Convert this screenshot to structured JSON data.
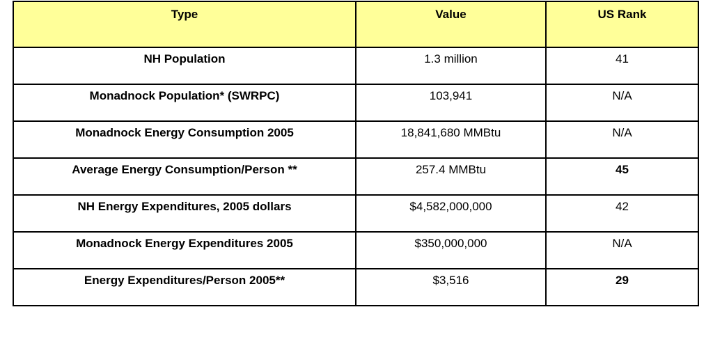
{
  "table": {
    "header_bg": "#FFFF99",
    "columns": [
      "Type",
      "Value",
      "US Rank"
    ],
    "rows": [
      {
        "type": "NH Population",
        "value": "1.3 million",
        "rank": "41",
        "rank_bold": false
      },
      {
        "type": "Monadnock Population* (SWRPC)",
        "value": "103,941",
        "rank": "N/A",
        "rank_bold": false
      },
      {
        "type": "Monadnock Energy Consumption 2005",
        "value": "18,841,680 MMBtu",
        "rank": "N/A",
        "rank_bold": false
      },
      {
        "type": "Average Energy Consumption/Person **",
        "value": "257.4 MMBtu",
        "rank": "45",
        "rank_bold": true
      },
      {
        "type": "NH Energy Expenditures, 2005 dollars",
        "value": "$4,582,000,000",
        "rank": "42",
        "rank_bold": false
      },
      {
        "type": "Monadnock Energy Expenditures 2005",
        "value": "$350,000,000",
        "rank": "N/A",
        "rank_bold": false
      },
      {
        "type": "Energy Expenditures/Person 2005**",
        "value": "$3,516",
        "rank": "29",
        "rank_bold": true
      }
    ]
  }
}
